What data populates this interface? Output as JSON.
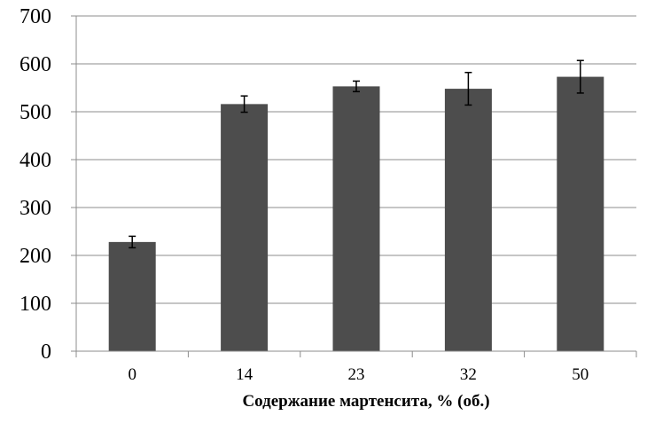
{
  "chart_data": {
    "type": "bar",
    "categories": [
      "0",
      "14",
      "23",
      "32",
      "50"
    ],
    "values": [
      228,
      516,
      553,
      548,
      573
    ],
    "errors": [
      12,
      17,
      11,
      34,
      34
    ],
    "title": "",
    "xlabel": "Содержание мартенсита, % (об.)",
    "ylabel": "",
    "ylim": [
      0,
      700
    ],
    "yticks": [
      "0",
      "100",
      "200",
      "300",
      "400",
      "500",
      "600",
      "700"
    ],
    "grid": true,
    "bar_color": "#4d4d4d"
  }
}
